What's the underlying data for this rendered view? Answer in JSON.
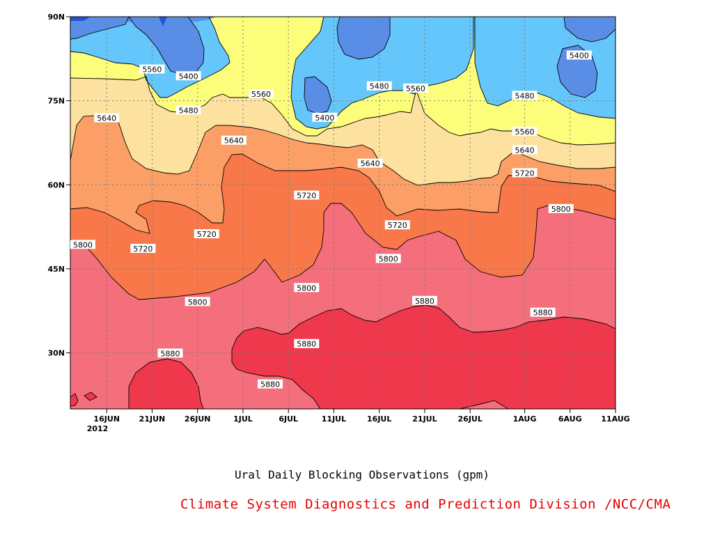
{
  "chart_data": {
    "type": "filled-contour",
    "x_axis": {
      "kind": "date",
      "range": [
        "2012-06-12",
        "2012-08-11"
      ],
      "tick_labels": [
        "16JUN",
        "21JUN",
        "26JUN",
        "1JUL",
        "6JUL",
        "11JUL",
        "16JUL",
        "21JUL",
        "26JUL",
        "1AUG",
        "6AUG",
        "11AUG"
      ],
      "tick_dates": [
        "2012-06-16",
        "2012-06-21",
        "2012-06-26",
        "2012-07-01",
        "2012-07-06",
        "2012-07-11",
        "2012-07-16",
        "2012-07-21",
        "2012-07-26",
        "2012-08-01",
        "2012-08-06",
        "2012-08-11"
      ],
      "year_label": "2012"
    },
    "y_axis": {
      "kind": "latitude",
      "range": [
        20,
        90
      ],
      "ticks": [
        30,
        45,
        60,
        75,
        90
      ],
      "tick_labels": [
        "30N",
        "45N",
        "60N",
        "75N",
        "90N"
      ]
    },
    "grid": true,
    "contour_levels": [
      5400,
      5480,
      5560,
      5640,
      5720,
      5800,
      5880
    ],
    "fill_colors": {
      "below_5400": "#2850d8",
      "5400_5480": "#5a8ee6",
      "5480_5560": "#64c6fa",
      "5560_5640": "#fdfd7c",
      "5640_5720": "#fde19e",
      "5720_5800": "#fb9f66",
      "5800_5880": "#f9784a",
      "5880_5960": "#f46e7c",
      "above_5960": "#ef384c"
    },
    "contour_labels": [
      {
        "text": "5560",
        "date": "2012-06-21",
        "lat": 80.6
      },
      {
        "text": "5400",
        "date": "2012-06-25",
        "lat": 79.4
      },
      {
        "text": "5480",
        "date": "2012-06-25",
        "lat": 73.3
      },
      {
        "text": "5640",
        "date": "2012-06-16",
        "lat": 71.9
      },
      {
        "text": "5560",
        "date": "2012-07-03",
        "lat": 76.2
      },
      {
        "text": "5640",
        "date": "2012-06-30",
        "lat": 67.9
      },
      {
        "text": "5480",
        "date": "2012-07-16",
        "lat": 77.6
      },
      {
        "text": "5400",
        "date": "2012-07-10",
        "lat": 72.0
      },
      {
        "text": "5560",
        "date": "2012-07-20",
        "lat": 77.2
      },
      {
        "text": "5640",
        "date": "2012-07-15",
        "lat": 63.8
      },
      {
        "text": "5400",
        "date": "2012-08-07",
        "lat": 83.1
      },
      {
        "text": "5480",
        "date": "2012-08-01",
        "lat": 75.9
      },
      {
        "text": "5560",
        "date": "2012-08-01",
        "lat": 69.5
      },
      {
        "text": "5640",
        "date": "2012-08-01",
        "lat": 66.2
      },
      {
        "text": "5720",
        "date": "2012-08-01",
        "lat": 62.1
      },
      {
        "text": "5720",
        "date": "2012-07-08",
        "lat": 58.1
      },
      {
        "text": "5720",
        "date": "2012-06-27",
        "lat": 51.2
      },
      {
        "text": "5720",
        "date": "2012-06-20",
        "lat": 48.6
      },
      {
        "text": "5800",
        "date": "2012-06-12",
        "lat": 49.3
      },
      {
        "text": "5720",
        "date": "2012-07-18",
        "lat": 52.8
      },
      {
        "text": "5800",
        "date": "2012-07-17",
        "lat": 46.8
      },
      {
        "text": "5800",
        "date": "2012-06-26",
        "lat": 39.1
      },
      {
        "text": "5800",
        "date": "2012-07-08",
        "lat": 41.6
      },
      {
        "text": "5800",
        "date": "2012-08-05",
        "lat": 55.7
      },
      {
        "text": "5880",
        "date": "2012-07-21",
        "lat": 39.3
      },
      {
        "text": "5880",
        "date": "2012-08-03",
        "lat": 37.2
      },
      {
        "text": "5880",
        "date": "2012-07-08",
        "lat": 31.6
      },
      {
        "text": "5880",
        "date": "2012-06-23",
        "lat": 29.9
      },
      {
        "text": "5880",
        "date": "2012-07-04",
        "lat": 24.4
      }
    ]
  },
  "captions": {
    "title": "Ural Daily Blocking Observations (gpm)",
    "credit": "Climate System Diagnostics and Prediction Division /NCC/CMA"
  }
}
